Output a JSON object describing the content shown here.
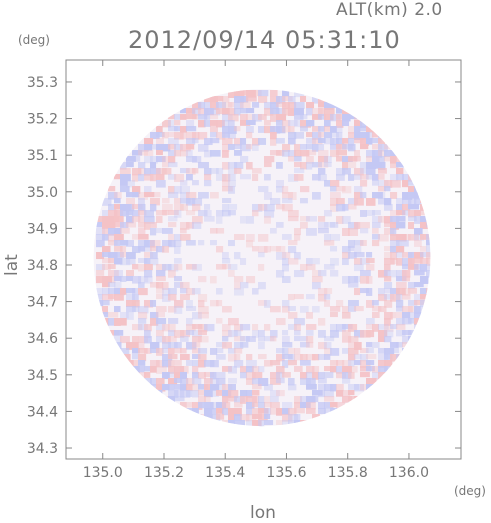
{
  "header": {
    "altitude_label": "ALT(km) 2.0",
    "timestamp": "2012/09/14 05:31:10"
  },
  "axes": {
    "y_unit": "(deg)",
    "x_unit": "(deg)",
    "x_label": "lon",
    "y_label": "lat"
  },
  "chart_data": {
    "type": "heatmap",
    "title": "2012/09/14 05:31:10",
    "subtitle": "ALT(km) 2.0",
    "xlabel": "lon",
    "ylabel": "lat",
    "xlim": [
      134.88,
      136.17
    ],
    "ylim": [
      34.27,
      35.36
    ],
    "x_ticks": [
      "135.0",
      "135.2",
      "135.4",
      "135.6",
      "135.8",
      "136.0"
    ],
    "y_ticks": [
      "34.3",
      "34.4",
      "34.5",
      "34.6",
      "34.7",
      "34.8",
      "34.9",
      "35.0",
      "35.1",
      "35.2",
      "35.3"
    ],
    "x_tick_values": [
      135.0,
      135.2,
      135.4,
      135.6,
      135.8,
      136.0
    ],
    "y_tick_values": [
      34.3,
      34.4,
      34.5,
      34.6,
      34.7,
      34.8,
      34.9,
      35.0,
      35.1,
      35.2,
      35.3
    ],
    "coverage": {
      "shape": "circle",
      "center_lon": 135.52,
      "center_lat": 34.82,
      "radius_deg": 0.55
    },
    "grid": false,
    "colors": {
      "positive": "#f4c2c6",
      "negative": "#c4c8f4",
      "neutral": "#f6f2f8",
      "frame": "#888888"
    }
  }
}
